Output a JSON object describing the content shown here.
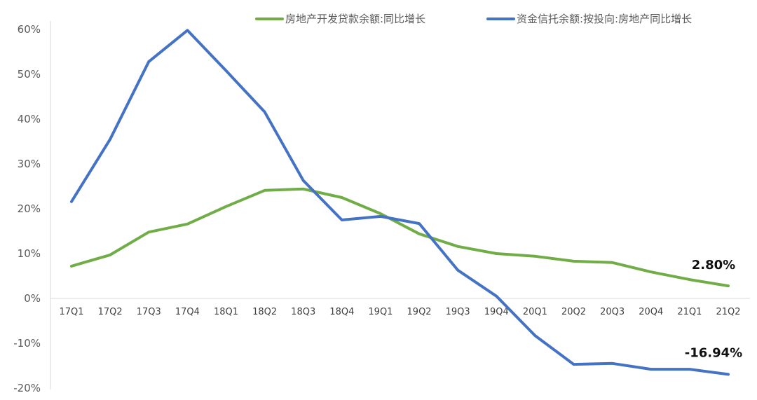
{
  "chart_data": {
    "type": "line",
    "title": "",
    "xlabel": "",
    "ylabel": "",
    "ylim": [
      -20,
      60
    ],
    "yticks": [
      "-20%",
      "-10%",
      "0%",
      "10%",
      "20%",
      "30%",
      "40%",
      "50%",
      "60%"
    ],
    "ytick_values": [
      -20,
      -10,
      0,
      10,
      20,
      30,
      40,
      50,
      60
    ],
    "grid": false,
    "legend_position": "top-right",
    "categories": [
      "17Q1",
      "17Q2",
      "17Q3",
      "17Q4",
      "18Q1",
      "18Q2",
      "18Q3",
      "18Q4",
      "19Q1",
      "19Q2",
      "19Q3",
      "19Q4",
      "20Q1",
      "20Q2",
      "20Q3",
      "20Q4",
      "21Q1",
      "21Q2"
    ],
    "series": [
      {
        "name": "房地产开发贷款余额:同比增长",
        "color": "#70AD47",
        "values": [
          7.2,
          9.7,
          14.8,
          16.6,
          20.5,
          24.1,
          24.4,
          22.5,
          18.9,
          14.4,
          11.6,
          10.0,
          9.4,
          8.3,
          8.0,
          5.9,
          4.2,
          2.8
        ],
        "end_label": "2.80%"
      },
      {
        "name": "资金信托余额:按投向:房地产同比增长",
        "color": "#4472C4",
        "values": [
          21.6,
          35.5,
          52.8,
          59.8,
          50.8,
          41.6,
          26.3,
          17.5,
          18.3,
          16.7,
          6.3,
          0.5,
          -8.3,
          -14.7,
          -14.5,
          -15.8,
          -15.8,
          -16.94
        ],
        "end_label": "-16.94%"
      }
    ]
  }
}
